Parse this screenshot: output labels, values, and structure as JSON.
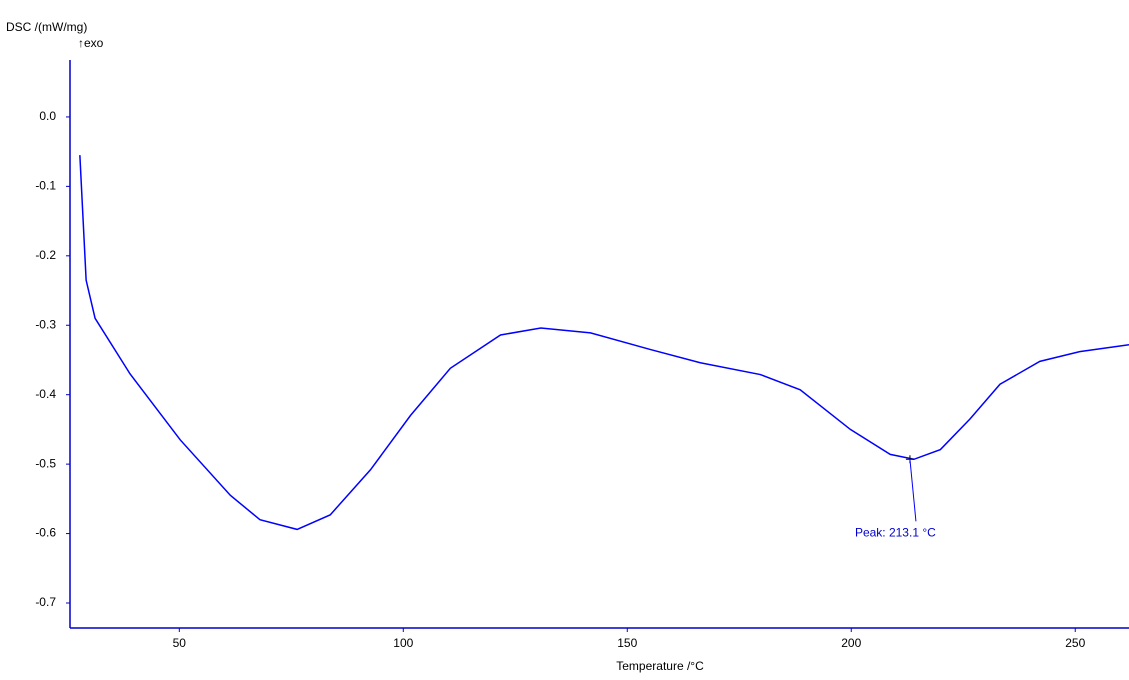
{
  "chart_data": {
    "type": "line",
    "y_label": "DSC /(mW/mg)",
    "y_label_note": "↑exo",
    "x_label": "Temperature /°C",
    "x": [
      27.8,
      29.2,
      31.2,
      39,
      50.2,
      61.4,
      68,
      76.3,
      83.7,
      92.7,
      101.6,
      110.5,
      121.7,
      130.7,
      141.8,
      155.2,
      166.3,
      179.7,
      188.6,
      199.8,
      208.7,
      214,
      219.9,
      226.5,
      233.2,
      242.1,
      251,
      262
    ],
    "series": [
      {
        "color": "#0000ff",
        "values": [
          -0.055,
          -0.235,
          -0.29,
          -0.37,
          -0.465,
          -0.545,
          -0.58,
          -0.594,
          -0.573,
          -0.508,
          -0.43,
          -0.362,
          -0.314,
          -0.304,
          -0.311,
          -0.335,
          -0.354,
          -0.371,
          -0.393,
          -0.45,
          -0.486,
          -0.493,
          -0.479,
          -0.435,
          -0.385,
          -0.352,
          -0.338,
          -0.328
        ]
      }
    ],
    "xlim": [
      25.6,
      262
    ],
    "xticks": [
      50,
      100,
      150,
      200,
      250
    ],
    "ylim": [
      -0.736,
      0.082
    ],
    "yticks": [
      {
        "value": 0,
        "label": "0.0"
      },
      -0.1,
      -0.2,
      -0.3,
      -0.4,
      -0.5,
      -0.6,
      -0.7
    ],
    "peak": {
      "label": "Peak: 213.1 °C",
      "x": 213.1,
      "y": -0.493
    }
  }
}
